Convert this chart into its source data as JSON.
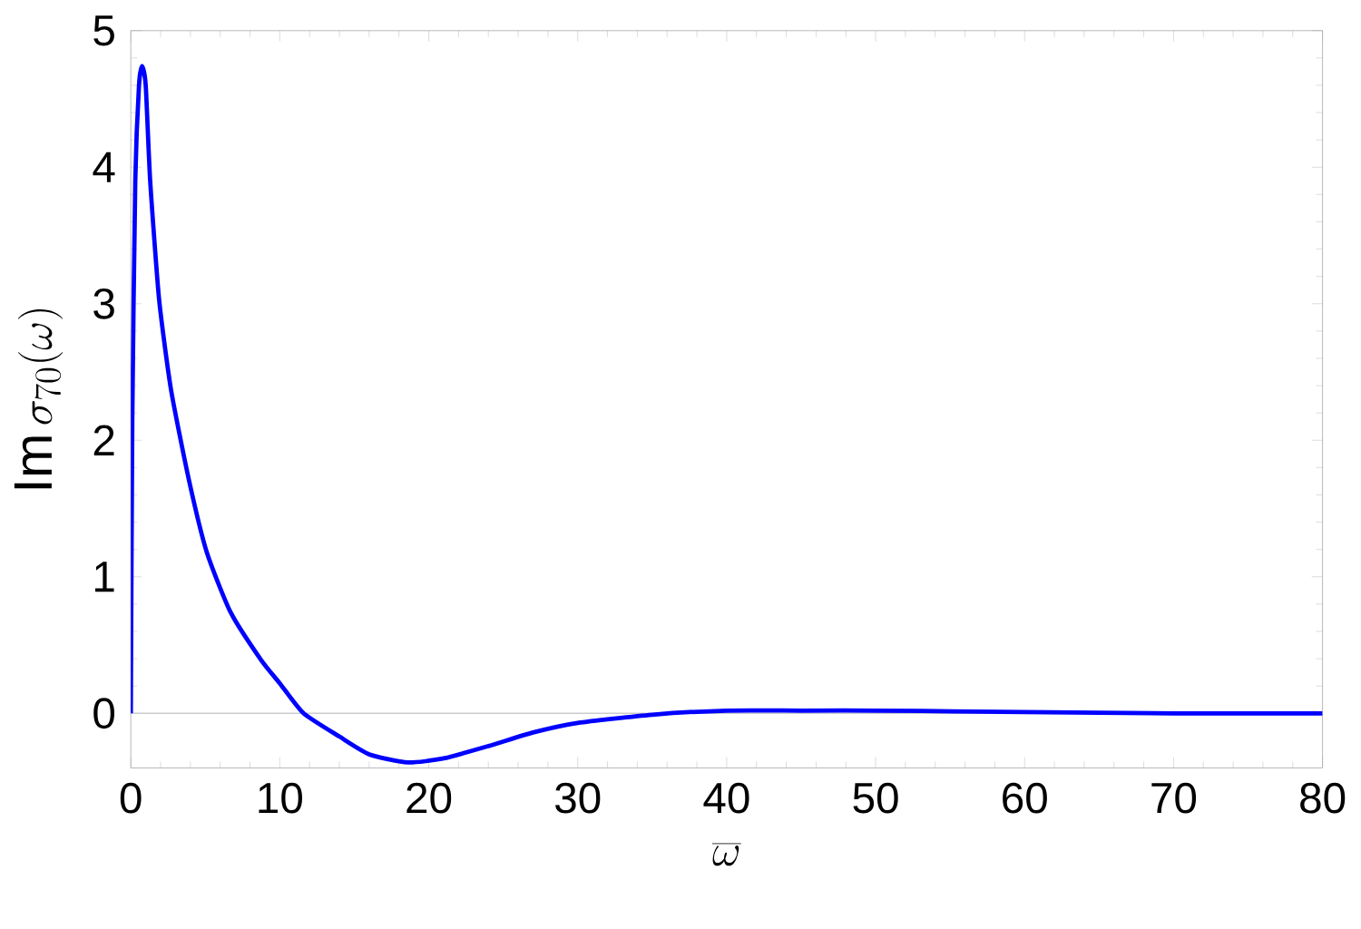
{
  "chart_data": {
    "type": "line",
    "xlabel": "\\overline{\\omega}",
    "ylabel": "\\mathrm{Im}\\,\\sigma_{70}(\\omega)",
    "x": [
      0,
      0.1,
      0.3,
      0.55,
      0.75,
      1.0,
      1.3,
      1.9,
      2.7,
      3.9,
      5.1,
      6.7,
      8.75,
      10,
      11.6,
      14,
      16,
      18.6,
      21,
      24,
      27,
      30,
      35,
      40,
      45,
      50,
      60,
      70,
      80
    ],
    "series": [
      {
        "color": "#0000ff",
        "values": [
          0,
          2.15,
          3.9,
          4.6,
          4.74,
          4.6,
          3.9,
          3.03,
          2.37,
          1.71,
          1.18,
          0.74,
          0.39,
          0.22,
          0,
          -0.17,
          -0.3,
          -0.36,
          -0.33,
          -0.24,
          -0.14,
          -0.07,
          -0.01,
          0.02,
          0.02,
          0.02,
          0.01,
          0,
          0
        ]
      }
    ],
    "xlim": [
      0,
      80
    ],
    "ylim": [
      -0.4,
      5
    ],
    "xticks": [
      0,
      10,
      20,
      30,
      40,
      50,
      60,
      70,
      80
    ],
    "yticks": [
      0,
      1,
      2,
      3,
      4,
      5
    ],
    "ref_lines": [
      {
        "axis": "y",
        "value": 0,
        "color": "#cccccc"
      }
    ],
    "grid": false,
    "marker": "none",
    "line_style": "solid"
  }
}
